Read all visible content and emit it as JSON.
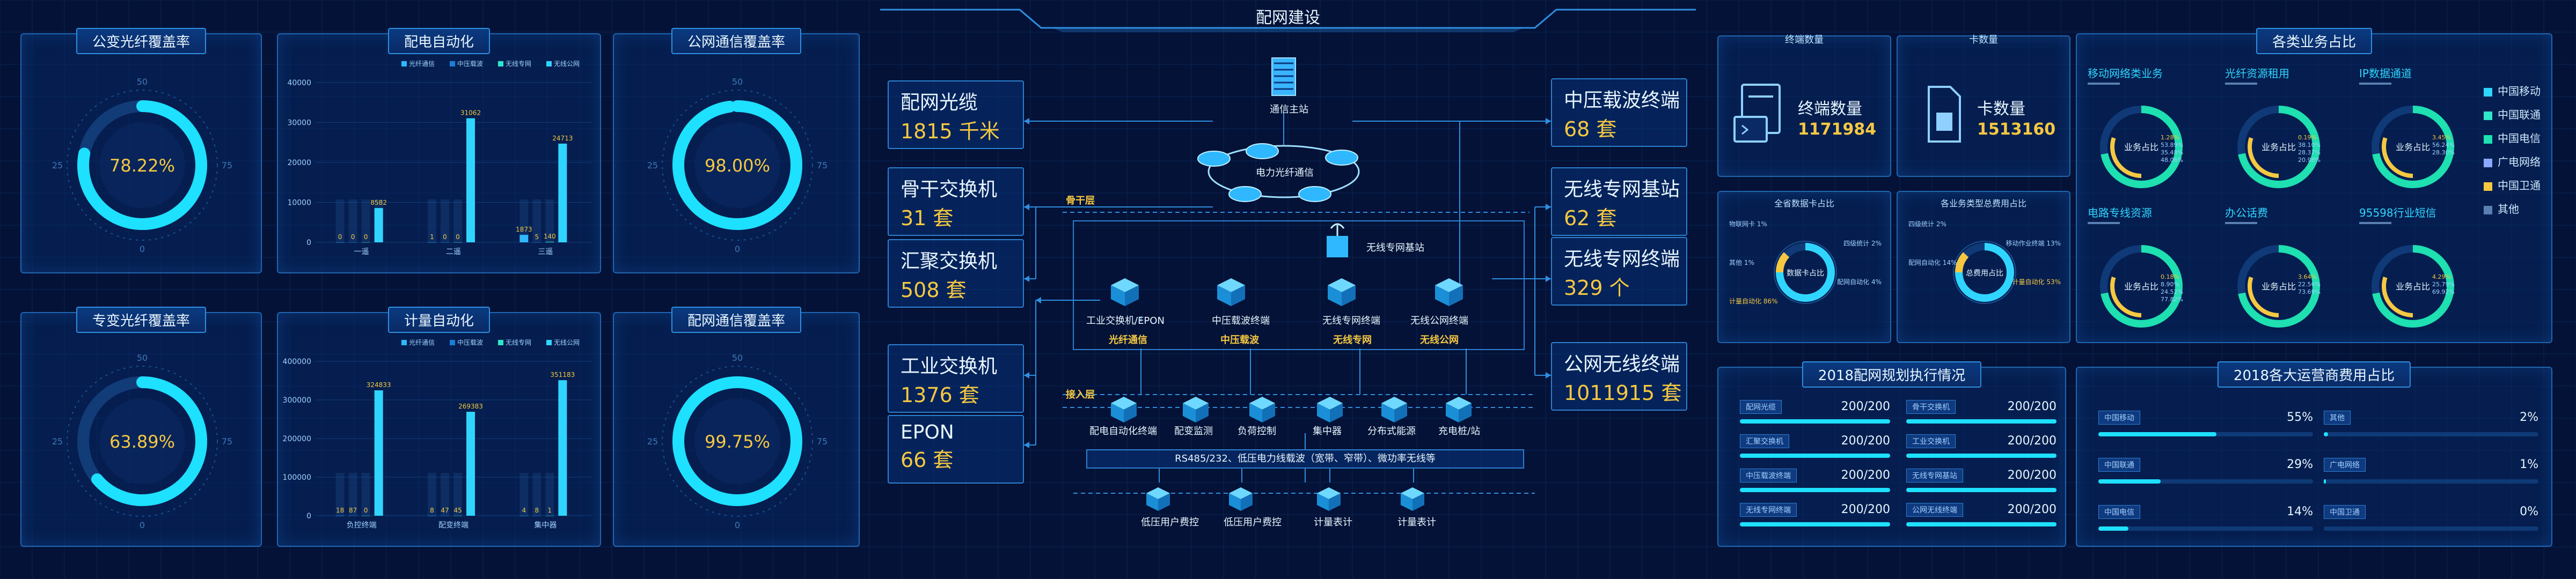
{
  "header": {
    "title": "配网建设"
  },
  "left": {
    "gauges": [
      {
        "title": "公变光纤覆盖率",
        "value": "78.22%",
        "pct": 78.22,
        "ticks": [
          "50",
          "25",
          "75",
          "0"
        ]
      },
      {
        "title": "公网通信覆盖率",
        "value": "98.00%",
        "pct": 98.0,
        "ticks": [
          "50",
          "25",
          "75",
          "0"
        ]
      },
      {
        "title": "专变光纤覆盖率",
        "value": "63.89%",
        "pct": 63.89,
        "ticks": [
          "50",
          "25",
          "75",
          "0"
        ]
      },
      {
        "title": "配网通信覆盖率",
        "value": "99.75%",
        "pct": 99.75,
        "ticks": [
          "50",
          "25",
          "75",
          "0"
        ]
      }
    ]
  },
  "chart_data": [
    {
      "type": "bar",
      "title": "配电自动化",
      "legend": [
        "光纤通信",
        "中压载波",
        "无线专网",
        "无线公网"
      ],
      "colors": [
        "#2fb8ff",
        "#1a7fd6",
        "#2fe6c8",
        "#30d5ff"
      ],
      "categories": [
        "一遥",
        "二遥",
        "三遥"
      ],
      "ylim": [
        0,
        40000
      ],
      "yticks": [
        "0",
        "10000",
        "20000",
        "30000",
        "40000"
      ],
      "series": [
        {
          "name": "光纤通信",
          "values": [
            0,
            1,
            1873
          ]
        },
        {
          "name": "中压载波",
          "values": [
            0,
            0,
            5
          ]
        },
        {
          "name": "无线专网",
          "values": [
            0,
            0,
            140
          ]
        },
        {
          "name": "无线公网",
          "values": [
            8582,
            31062,
            24713
          ]
        }
      ]
    },
    {
      "type": "bar",
      "title": "计量自动化",
      "legend": [
        "光纤通信",
        "中压载波",
        "无线专网",
        "无线公网"
      ],
      "colors": [
        "#2fb8ff",
        "#1a7fd6",
        "#2fe6c8",
        "#30d5ff"
      ],
      "categories": [
        "负控终端",
        "配变终端",
        "集中器"
      ],
      "ylim": [
        0,
        400000
      ],
      "yticks": [
        "0",
        "100000",
        "200000",
        "300000",
        "400000"
      ],
      "series": [
        {
          "name": "光纤通信",
          "values": [
            18,
            8,
            4
          ]
        },
        {
          "name": "中压载波",
          "values": [
            87,
            47,
            8
          ]
        },
        {
          "name": "无线专网",
          "values": [
            0,
            45,
            1
          ]
        },
        {
          "name": "无线公网",
          "values": [
            324833,
            269383,
            351183
          ]
        }
      ]
    }
  ],
  "network": {
    "left_boxes": [
      {
        "t": "配网光缆",
        "v": "1815 千米"
      },
      {
        "t": "骨干交换机",
        "v": "31 套"
      },
      {
        "t": "汇聚交换机",
        "v": "508 套"
      },
      {
        "t": "工业交换机",
        "v": "1376 套"
      },
      {
        "t": "EPON",
        "v": "66 套"
      }
    ],
    "right_boxes": [
      {
        "t": "中压载波终端",
        "v": "68 套"
      },
      {
        "t": "无线专网基站",
        "v": "62 套"
      },
      {
        "t": "无线专网终端",
        "v": "329 个"
      },
      {
        "t": "公网无线终端",
        "v": "1011915 套"
      }
    ],
    "master": "通信主站",
    "ring": "电力光纤通信",
    "layer_backbone": "骨干层",
    "layer_access": "接入层",
    "wireless_base": "无线专网基站",
    "mid_nodes": [
      {
        "name": "工业交换机/EPON",
        "tag": "光纤通信"
      },
      {
        "name": "中压载波终端",
        "tag": "中压载波"
      },
      {
        "name": "无线专网终端",
        "tag": "无线专网"
      },
      {
        "name": "无线公网终端",
        "tag": "无线公网"
      }
    ],
    "access_nodes": [
      "配电自动化终端",
      "配变监测",
      "负荷控制",
      "集中器",
      "分布式能源",
      "充电桩/站"
    ],
    "bus": "RS485/232、低压电力线载波（宽带、窄带）、微功率无线等",
    "bottom_nodes": [
      "低压用户费控",
      "低压用户费控",
      "计量表计",
      "计量表计"
    ]
  },
  "right": {
    "terminal": {
      "title": "终端数量",
      "label": "终端数量",
      "value": "1171984"
    },
    "card": {
      "title": "卡数量",
      "label": "卡数量",
      "value": "1513160"
    },
    "bizshare": {
      "title": "各类业务占比",
      "donuts": [
        {
          "title": "移动网络类业务",
          "center": "业务占比",
          "vals": [
            "1.28%",
            "53.89%",
            "35.48%",
            "48.06%"
          ]
        },
        {
          "title": "光纤资源租用",
          "center": "业务占比",
          "vals": [
            "0.19%",
            "38.10%",
            "28.37%",
            "20.98%"
          ]
        },
        {
          "title": "IP数据通道",
          "center": "业务占比",
          "vals": [
            "3.45%",
            "56.24%",
            "28.30%"
          ]
        },
        {
          "title": "电路专线资源",
          "center": "业务占比",
          "vals": [
            "0.18%",
            "8.90%",
            "24.52%",
            "77.82%"
          ]
        },
        {
          "title": "办公话费",
          "center": "业务占比",
          "vals": [
            "3.64%",
            "22.56%",
            "73.69%"
          ]
        },
        {
          "title": "95598行业短信",
          "center": "业务占比",
          "vals": [
            "4.29%",
            "25.79%",
            "69.92%"
          ]
        }
      ],
      "legend": [
        {
          "name": "中国移动",
          "color": "#30d5ff"
        },
        {
          "name": "中国联通",
          "color": "#2fe6c8"
        },
        {
          "name": "中国电信",
          "color": "#1ee0b0"
        },
        {
          "name": "广电网络",
          "color": "#8aa8ff"
        },
        {
          "name": "中国卫通",
          "color": "#f5c842"
        },
        {
          "name": "其他",
          "color": "#5a7fb0"
        }
      ]
    },
    "pies": [
      {
        "title": "全省数据卡占比",
        "center": "数据卡占比",
        "labels": [
          "物联网卡 1%",
          "四级统计 2%",
          "其他 1%",
          "配网自动化 4%",
          "计量自动化 86%"
        ]
      },
      {
        "title": "各业务类型总费用占比",
        "center": "总费用占比",
        "labels": [
          "四级统计 2%",
          "移动作业终端 13%",
          "配网自动化 14%",
          "计量自动化 53%"
        ]
      }
    ],
    "plan": {
      "title": "2018配网规划执行情况",
      "rows": [
        {
          "name": "配网光缆",
          "val": "200/200"
        },
        {
          "name": "骨干交换机",
          "val": "200/200"
        },
        {
          "name": "汇聚交换机",
          "val": "200/200"
        },
        {
          "name": "工业交换机",
          "val": "200/200"
        },
        {
          "name": "中压载波终端",
          "val": "200/200"
        },
        {
          "name": "无线专网基站",
          "val": "200/200"
        },
        {
          "name": "无线专网终端",
          "val": "200/200"
        },
        {
          "name": "公网无线终端",
          "val": "200/200"
        }
      ]
    },
    "operators": {
      "title": "2018各大运营商费用占比",
      "rows": [
        {
          "name": "中国移动",
          "val": "55%",
          "pct": 55
        },
        {
          "name": "其他",
          "val": "2%",
          "pct": 2
        },
        {
          "name": "中国联通",
          "val": "29%",
          "pct": 29
        },
        {
          "name": "广电网络",
          "val": "1%",
          "pct": 1
        },
        {
          "name": "中国电信",
          "val": "14%",
          "pct": 14
        },
        {
          "name": "中国卫通",
          "val": "0%",
          "pct": 0
        }
      ]
    }
  }
}
